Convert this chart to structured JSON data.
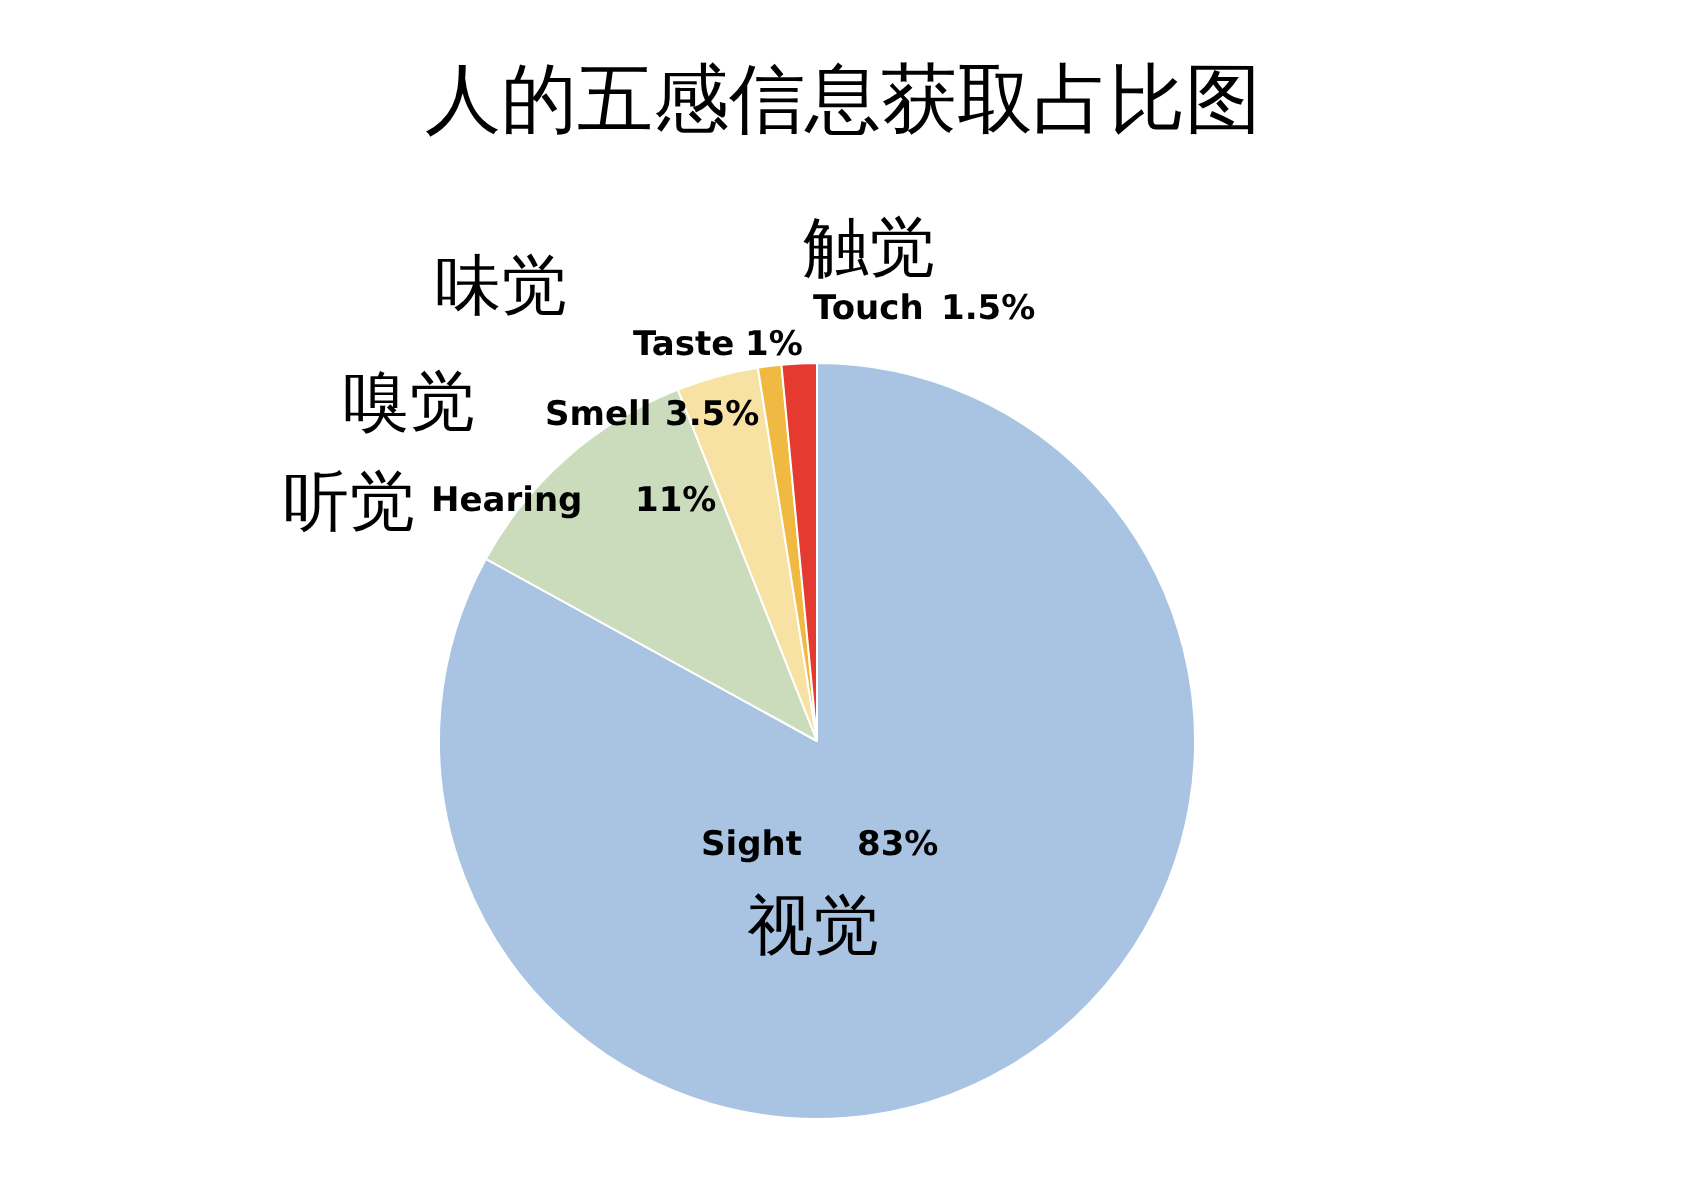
{
  "chart_data": {
    "type": "pie",
    "title": "人的五感信息获取占比图",
    "categories": [
      "Sight",
      "Hearing",
      "Smell",
      "Taste",
      "Touch"
    ],
    "values": [
      83,
      11,
      3.5,
      1,
      1.5
    ],
    "colors": [
      "#a9c4e2",
      "#cadcbc",
      "#f8e2a3",
      "#f0b942",
      "#e53a2f"
    ],
    "value_labels": [
      "83%",
      "11%",
      "3.5%",
      "1%",
      "1.5%"
    ],
    "annotations": [
      "视觉",
      "听觉",
      "嗅觉",
      "味觉",
      "触觉"
    ]
  }
}
